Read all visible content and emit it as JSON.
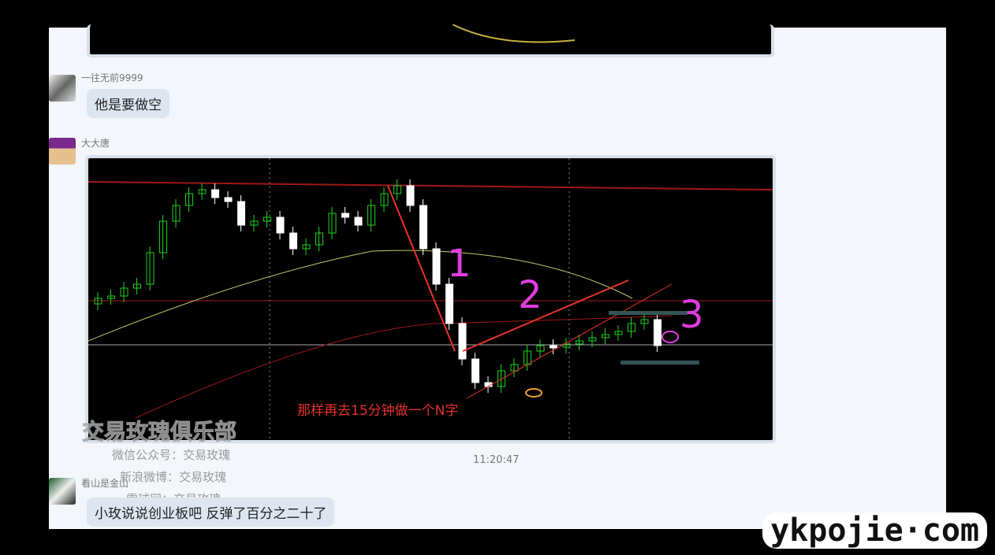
{
  "messages": [
    {
      "sender": "一往无前9999",
      "text": "他是要做空"
    },
    {
      "sender": "大大唐",
      "chart_annotation": "那样再去15分钟做一个N字",
      "marks": [
        "1",
        "2",
        "3"
      ]
    },
    {
      "sender": "看山是金山",
      "text": "小玫说说创业板吧   反弹了百分之二十了"
    }
  ],
  "timestamp": "11:20:47",
  "watermark": {
    "title": "交易玫瑰俱乐部",
    "lines": [
      "微信公众号：交易玫瑰",
      "新浪微博：交易玫瑰",
      "雪球网：交易玫瑰"
    ]
  },
  "site_logo": "ykpojie·com",
  "colors": {
    "up": "#1fd11f",
    "down": "#ffffff",
    "ma_yellow": "#c8c86a",
    "ma_red": "#a01818",
    "annotation": "#e8332a",
    "magenta": "#e03ce0"
  }
}
